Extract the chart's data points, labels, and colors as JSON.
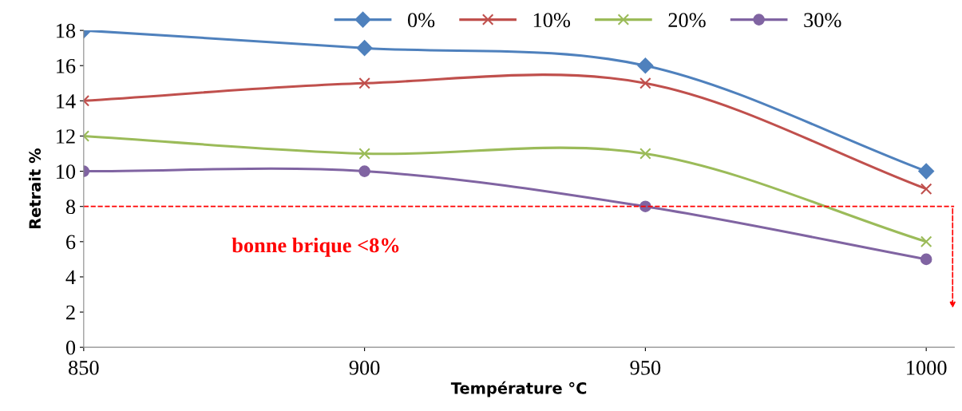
{
  "chart_data": {
    "type": "line",
    "xlabel": "Température °C",
    "ylabel": "Retrait %",
    "x": [
      850,
      900,
      950,
      1000
    ],
    "series": [
      {
        "name": "0%",
        "color": "#4f81bd",
        "marker": "diamond",
        "values": [
          18,
          17,
          16,
          10
        ]
      },
      {
        "name": "10%",
        "color": "#c0504d",
        "marker": "cross",
        "values": [
          14,
          15,
          15,
          9
        ]
      },
      {
        "name": "20%",
        "color": "#9bbb59",
        "marker": "cross",
        "values": [
          12,
          11,
          11,
          6
        ]
      },
      {
        "name": "30%",
        "color": "#8064a2",
        "marker": "circle",
        "values": [
          10,
          10,
          8,
          5
        ]
      }
    ],
    "xlim": [
      850,
      1005
    ],
    "xticks": [
      850,
      900,
      950,
      1000
    ],
    "ylim": [
      0,
      18
    ],
    "yticks": [
      0,
      2,
      4,
      6,
      8,
      10,
      12,
      14,
      16,
      18
    ],
    "ref_lines": [
      {
        "axis": "y",
        "value": 8,
        "color": "#ff0000",
        "line_style": "dashed"
      }
    ],
    "annotations": [
      "bonne brique <8%"
    ],
    "grid": false,
    "legend": "top",
    "line_style": "solid"
  }
}
